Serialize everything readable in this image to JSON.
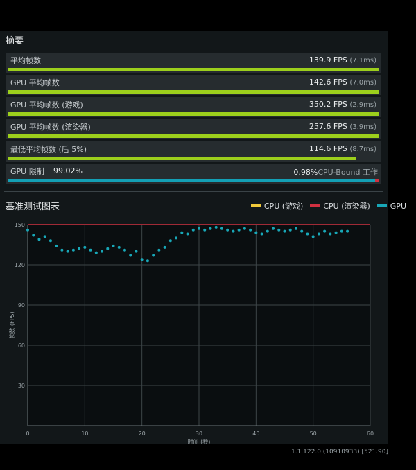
{
  "summary": {
    "title": "摘要",
    "rows": [
      {
        "label": "平均帧数",
        "fps": "139.9 FPS",
        "ms": "(7.1ms)",
        "fill": 1.0
      },
      {
        "label": "GPU 平均帧数",
        "fps": "142.6 FPS",
        "ms": "(7.0ms)",
        "fill": 1.0
      },
      {
        "label": "GPU 平均帧数 (游戏)",
        "fps": "350.2 FPS",
        "ms": "(2.9ms)",
        "fill": 1.0
      },
      {
        "label": "GPU 平均帧数 (渲染器)",
        "fps": "257.6 FPS",
        "ms": "(3.9ms)",
        "fill": 1.0
      },
      {
        "label": "最低平均帧数 (后 5%)",
        "fps": "114.6 FPS",
        "ms": "(8.7ms)",
        "fill": 0.94
      }
    ],
    "limit": {
      "label": "GPU 限制",
      "gpu_pct": "99.02%",
      "cpu_pct": "0.98%",
      "cpu_label": "CPU-Bound 工作",
      "cpu_fraction": 0.0098
    }
  },
  "benchmark": {
    "title": "基准测试图表",
    "legend": [
      {
        "name": "CPU (游戏)",
        "color": "#f0c93a"
      },
      {
        "name": "CPU (渲染器)",
        "color": "#d03040"
      },
      {
        "name": "GPU",
        "color": "#18a7b7"
      }
    ]
  },
  "chart_data": {
    "type": "scatter",
    "xlabel": "时间 (秒)",
    "ylabel": "帧数 (FPS)",
    "xlim": [
      0,
      60
    ],
    "ylim": [
      0,
      150
    ],
    "x_ticks": [
      "0",
      "10",
      "20",
      "30",
      "40",
      "50",
      "60"
    ],
    "y_ticks": [
      "30",
      "60",
      "90",
      "120",
      "150"
    ],
    "grid": true,
    "series": [
      {
        "name": "GPU",
        "x": [
          0,
          1,
          2,
          3,
          4,
          5,
          6,
          7,
          8,
          9,
          10,
          11,
          12,
          13,
          14,
          15,
          16,
          17,
          18,
          19,
          20,
          21,
          22,
          23,
          24,
          25,
          26,
          27,
          28,
          29,
          30,
          31,
          32,
          33,
          34,
          35,
          36,
          37,
          38,
          39,
          40,
          41,
          42,
          43,
          44,
          45,
          46,
          47,
          48,
          49,
          50,
          51,
          52,
          53,
          54,
          55,
          56
        ],
        "y": [
          146,
          142,
          139,
          141,
          138,
          134,
          131,
          130,
          131,
          132,
          133,
          131,
          129,
          130,
          132,
          134,
          133,
          131,
          127,
          130,
          124,
          123,
          127,
          131,
          133,
          138,
          140,
          144,
          143,
          146,
          147,
          146,
          147,
          148,
          147,
          146,
          145,
          146,
          147,
          146,
          144,
          143,
          145,
          147,
          146,
          145,
          146,
          147,
          145,
          143,
          141,
          143,
          145,
          143,
          144,
          145,
          145
        ]
      },
      {
        "name": "CPU (渲染器)",
        "x": [
          0,
          60
        ],
        "y": [
          150,
          150
        ]
      }
    ]
  },
  "version": "1.1.122.0 (10910933) [521.90]"
}
